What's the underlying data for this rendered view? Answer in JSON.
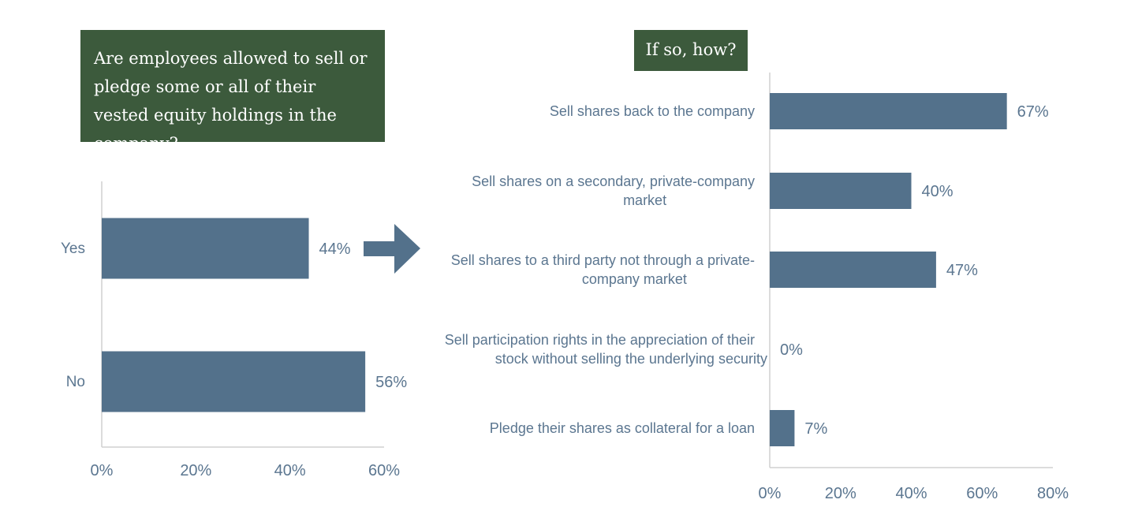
{
  "colors": {
    "bar": "#53718b",
    "title_bg": "#3c5a3c",
    "text": "#5b7690",
    "axis": "#d0d0d0",
    "arrow": "#53718b"
  },
  "left_title": "Are employees allowed to sell or pledge some or all of their vested equity holdings in the company?",
  "right_title": "If so, how?",
  "arrow_icon": "right-arrow-icon",
  "chart_data": [
    {
      "type": "bar",
      "orientation": "horizontal",
      "categories": [
        "Yes",
        "No"
      ],
      "values": [
        44,
        56
      ],
      "value_labels": [
        "44%",
        "56%"
      ],
      "xlim": [
        0,
        60
      ],
      "xticks": [
        "0%",
        "20%",
        "40%",
        "60%"
      ],
      "grid": false
    },
    {
      "type": "bar",
      "orientation": "horizontal",
      "categories": [
        [
          "Sell shares back to the company"
        ],
        [
          "Sell shares on a secondary, private-company",
          "market"
        ],
        [
          "Sell shares to a third party not through a private-",
          "company market"
        ],
        [
          "Sell participation rights in the appreciation of their",
          "stock without selling the underlying security"
        ],
        [
          "Pledge their shares as collateral for a loan"
        ]
      ],
      "values": [
        67,
        40,
        47,
        0,
        7
      ],
      "value_labels": [
        "67%",
        "40%",
        "47%",
        "0%",
        "7%"
      ],
      "xlim": [
        0,
        80
      ],
      "xticks": [
        "0%",
        "20%",
        "40%",
        "60%",
        "80%"
      ],
      "grid": false
    }
  ]
}
